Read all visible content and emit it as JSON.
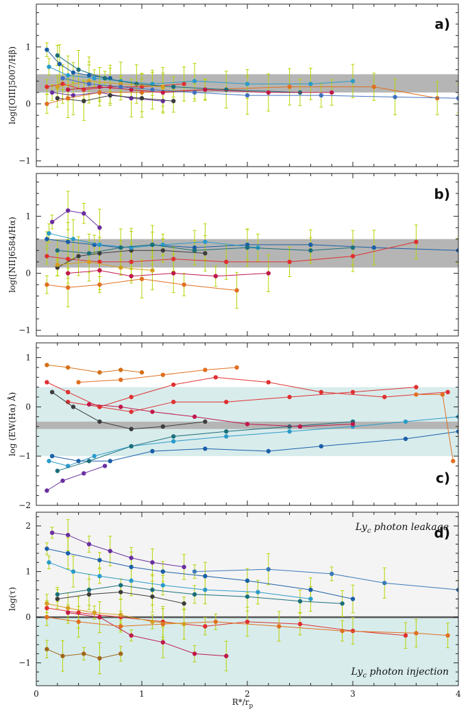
{
  "figure": {
    "xlabel": "R*/r_p",
    "xlabel_main": "R*/r",
    "xlabel_sub": "p"
  },
  "chart_data": [
    {
      "type": "scatter",
      "panel": "a)",
      "ylabel": "log([OIII]5007/Hβ)",
      "xlim": [
        0,
        4
      ],
      "ylim": [
        -1.1,
        1.75
      ],
      "xticks": [
        0,
        1,
        2,
        3,
        4
      ],
      "yticks": [
        -1,
        0,
        1
      ],
      "xtick_labels_shown": false,
      "errorbars": true,
      "bands": [
        {
          "y0": 0.2,
          "y1": 0.52,
          "color": "#b5b5b5"
        }
      ],
      "series": [
        {
          "color": "#1a5fa8",
          "x": [
            0.1,
            0.22,
            0.35,
            0.5,
            0.7
          ],
          "y": [
            0.95,
            0.7,
            0.55,
            0.5,
            0.45
          ]
        },
        {
          "color": "#e03030",
          "x": [
            0.1,
            0.25,
            0.45,
            0.7,
            1.0,
            1.4
          ],
          "y": [
            0.3,
            0.35,
            0.25,
            0.3,
            0.3,
            0.35
          ]
        },
        {
          "color": "#6a2fa0",
          "x": [
            0.15,
            0.35,
            0.6,
            0.9,
            1.2
          ],
          "y": [
            0.2,
            0.15,
            0.2,
            0.1,
            0.05
          ]
        },
        {
          "color": "#2a9bc9",
          "x": [
            0.12,
            0.3,
            0.55,
            0.8,
            1.1,
            1.5,
            2.0,
            2.6,
            3.0
          ],
          "y": [
            0.65,
            0.5,
            0.45,
            0.4,
            0.35,
            0.4,
            0.35,
            0.35,
            0.4
          ]
        },
        {
          "color": "#3c3c3c",
          "x": [
            0.2,
            0.45,
            0.7,
            1.0,
            1.3
          ],
          "y": [
            0.1,
            0.05,
            0.15,
            0.1,
            0.05
          ]
        },
        {
          "color": "#e07020",
          "x": [
            0.1,
            0.3,
            0.6,
            1.0,
            1.6,
            2.4,
            3.2,
            3.8
          ],
          "y": [
            0.0,
            0.1,
            0.2,
            0.2,
            0.25,
            0.3,
            0.3,
            0.1
          ]
        },
        {
          "color": "#1a6f7a",
          "x": [
            0.2,
            0.4,
            0.65,
            0.95,
            1.3,
            1.8,
            2.5
          ],
          "y": [
            0.85,
            0.6,
            0.45,
            0.35,
            0.3,
            0.25,
            0.2
          ]
        },
        {
          "color": "#c0184a",
          "x": [
            0.3,
            0.6,
            0.9,
            1.2,
            1.6,
            2.2,
            2.8
          ],
          "y": [
            0.25,
            0.3,
            0.25,
            0.2,
            0.25,
            0.2,
            0.2
          ]
        },
        {
          "color": "#d4a020",
          "x": [
            0.2,
            0.5,
            0.8,
            1.2
          ],
          "y": [
            0.3,
            0.4,
            0.35,
            0.3
          ]
        },
        {
          "color": "#4070c0",
          "x": [
            0.25,
            0.5,
            0.8,
            1.1,
            1.5,
            2.0,
            2.7,
            3.4,
            4.0
          ],
          "y": [
            0.45,
            0.35,
            0.3,
            0.25,
            0.2,
            0.15,
            0.15,
            0.12,
            0.1
          ]
        }
      ]
    },
    {
      "type": "scatter",
      "panel": "b)",
      "ylabel": "log([NII]6584/Hα)",
      "xlim": [
        0,
        4
      ],
      "ylim": [
        -1.1,
        1.75
      ],
      "xticks": [
        0,
        1,
        2,
        3,
        4
      ],
      "yticks": [
        -1,
        0,
        1
      ],
      "xtick_labels_shown": false,
      "errorbars": true,
      "bands": [
        {
          "y0": 0.1,
          "y1": 0.6,
          "color": "#b5b5b5"
        }
      ],
      "series": [
        {
          "color": "#6a2fa0",
          "x": [
            0.15,
            0.3,
            0.45,
            0.6
          ],
          "y": [
            0.9,
            1.1,
            1.05,
            0.8
          ]
        },
        {
          "color": "#1a5fa8",
          "x": [
            0.1,
            0.3,
            0.55,
            0.8,
            1.1,
            1.5,
            2.0,
            2.6,
            3.2,
            4.0
          ],
          "y": [
            0.6,
            0.55,
            0.5,
            0.45,
            0.5,
            0.45,
            0.5,
            0.5,
            0.45,
            0.4
          ]
        },
        {
          "color": "#e03030",
          "x": [
            0.1,
            0.3,
            0.6,
            0.9,
            1.3,
            1.8,
            2.4,
            3.0,
            3.6
          ],
          "y": [
            0.3,
            0.25,
            0.2,
            0.2,
            0.25,
            0.2,
            0.2,
            0.3,
            0.55
          ]
        },
        {
          "color": "#3c3c3c",
          "x": [
            0.2,
            0.4,
            0.6,
            0.9,
            1.2,
            1.6
          ],
          "y": [
            0.1,
            0.3,
            0.35,
            0.4,
            0.4,
            0.35
          ]
        },
        {
          "color": "#e07020",
          "x": [
            0.1,
            0.3,
            0.6,
            1.0,
            1.4,
            1.9
          ],
          "y": [
            -0.2,
            -0.25,
            -0.2,
            -0.1,
            -0.2,
            -0.3
          ]
        },
        {
          "color": "#2a9bc9",
          "x": [
            0.12,
            0.35,
            0.6,
            0.9,
            1.2,
            1.6,
            2.1
          ],
          "y": [
            0.7,
            0.6,
            0.5,
            0.45,
            0.5,
            0.55,
            0.45
          ]
        },
        {
          "color": "#c0184a",
          "x": [
            0.3,
            0.6,
            0.9,
            1.3,
            1.7,
            2.2
          ],
          "y": [
            0.0,
            0.05,
            -0.05,
            0.0,
            -0.05,
            0.0
          ]
        },
        {
          "color": "#1a6f7a",
          "x": [
            0.2,
            0.5,
            0.8,
            1.1,
            1.5,
            2.0,
            2.6,
            3.0
          ],
          "y": [
            0.4,
            0.35,
            0.45,
            0.5,
            0.4,
            0.45,
            0.4,
            0.45
          ]
        },
        {
          "color": "#d4a020",
          "x": [
            0.2,
            0.5,
            0.8,
            1.1
          ],
          "y": [
            0.15,
            0.2,
            0.1,
            0.05
          ]
        }
      ]
    },
    {
      "type": "line",
      "panel": "c)",
      "ylabel": "log (EW(Hα) Å)",
      "xlim": [
        0,
        4
      ],
      "ylim": [
        -2,
        1.3
      ],
      "xticks": [
        0,
        1,
        2,
        3,
        4
      ],
      "yticks": [
        -2,
        -1,
        0,
        1
      ],
      "xtick_labels_shown": false,
      "errorbars": false,
      "bands": [
        {
          "y0": -1.0,
          "y1": 0.4,
          "color": "#d8ecec"
        },
        {
          "y0": -0.45,
          "y1": -0.3,
          "color": "#b5b5b5"
        }
      ],
      "series": [
        {
          "color": "#d47018",
          "x": [
            0.1,
            0.3,
            0.6,
            0.8,
            1.0
          ],
          "y": [
            0.85,
            0.8,
            0.7,
            0.75,
            0.7
          ]
        },
        {
          "color": "#e07020",
          "x": [
            0.4,
            0.8,
            1.2,
            1.6,
            1.9
          ],
          "y": [
            0.5,
            0.55,
            0.65,
            0.75,
            0.8
          ]
        },
        {
          "color": "#e03030",
          "x": [
            0.1,
            0.3,
            0.6,
            0.9,
            1.3,
            1.8,
            2.4,
            3.0,
            3.6
          ],
          "y": [
            0.5,
            0.3,
            0.0,
            -0.1,
            0.1,
            0.1,
            0.2,
            0.3,
            0.4
          ]
        },
        {
          "color": "#e03030",
          "x": [
            0.3,
            0.6,
            0.9,
            1.3,
            1.7,
            2.2,
            2.7,
            3.3,
            3.9
          ],
          "y": [
            0.1,
            0.0,
            0.2,
            0.45,
            0.6,
            0.5,
            0.3,
            0.2,
            0.3
          ]
        },
        {
          "color": "#3c3c3c",
          "x": [
            0.15,
            0.35,
            0.6,
            0.9,
            1.2,
            1.6
          ],
          "y": [
            0.3,
            0.0,
            -0.3,
            -0.45,
            -0.4,
            -0.3
          ]
        },
        {
          "color": "#2a9bc9",
          "x": [
            0.12,
            0.3,
            0.55,
            0.9,
            1.3,
            1.8,
            2.4,
            3.0,
            3.5,
            4.0
          ],
          "y": [
            -1.1,
            -1.2,
            -1.0,
            -0.8,
            -0.7,
            -0.6,
            -0.5,
            -0.4,
            -0.3,
            -0.2
          ]
        },
        {
          "color": "#1a5fa8",
          "x": [
            0.15,
            0.4,
            0.7,
            1.1,
            1.6,
            2.2,
            2.7,
            3.5,
            4.0
          ],
          "y": [
            -1.0,
            -1.1,
            -1.1,
            -0.9,
            -0.85,
            -0.9,
            -0.8,
            -0.65,
            -0.5
          ]
        },
        {
          "color": "#6a2fa0",
          "x": [
            0.1,
            0.25,
            0.45,
            0.65
          ],
          "y": [
            -1.7,
            -1.5,
            -1.35,
            -1.2
          ]
        },
        {
          "color": "#1a6f7a",
          "x": [
            0.2,
            0.5,
            0.9,
            1.3,
            1.8,
            2.4,
            3.0
          ],
          "y": [
            -1.3,
            -1.1,
            -0.8,
            -0.6,
            -0.5,
            -0.4,
            -0.3
          ]
        },
        {
          "color": "#e07020",
          "x": [
            3.6,
            3.85,
            3.95
          ],
          "y": [
            0.25,
            0.25,
            -1.1
          ]
        },
        {
          "color": "#c0184a",
          "x": [
            0.5,
            0.8,
            1.1,
            1.5,
            2.0,
            2.5,
            3.0
          ],
          "y": [
            0.05,
            0.0,
            -0.1,
            -0.2,
            -0.35,
            -0.4,
            -0.35
          ]
        }
      ]
    },
    {
      "type": "scatter",
      "panel": "d)",
      "ylabel": "log(τ)",
      "xlim": [
        0,
        4
      ],
      "ylim": [
        -1.5,
        2.3
      ],
      "xticks": [
        0,
        1,
        2,
        3,
        4
      ],
      "yticks": [
        -1,
        0,
        1,
        2
      ],
      "xtick_labels": [
        "0",
        "1",
        "2",
        "3",
        "4"
      ],
      "xtick_labels_shown": true,
      "errorbars": true,
      "bands": [
        {
          "y0": 0,
          "y1": 2.3,
          "color": "#f4f4f4"
        },
        {
          "y0": -1.5,
          "y1": 0,
          "color": "#d8ecec"
        }
      ],
      "hline": {
        "y": 0,
        "color": "#555555"
      },
      "annotations": [
        {
          "text": "Ly_c photon leakage",
          "main": "Ly",
          "sub": "c",
          "rest": " photon leakage",
          "position": "top-right"
        },
        {
          "text": "Ly_c photon injection",
          "main": "Ly",
          "sub": "c",
          "rest": " photon injection",
          "position": "bottom-right"
        }
      ],
      "series": [
        {
          "color": "#6a2fa0",
          "x": [
            0.15,
            0.3,
            0.5,
            0.7,
            0.9,
            1.1,
            1.4
          ],
          "y": [
            1.85,
            1.8,
            1.6,
            1.45,
            1.3,
            1.2,
            1.1
          ]
        },
        {
          "color": "#1a5fa8",
          "x": [
            0.1,
            0.3,
            0.6,
            0.9,
            1.2,
            1.6,
            2.0,
            2.6,
            3.0
          ],
          "y": [
            1.5,
            1.4,
            1.25,
            1.1,
            1.0,
            0.9,
            0.8,
            0.6,
            0.4
          ]
        },
        {
          "color": "#2a9bc9",
          "x": [
            0.12,
            0.35,
            0.6,
            0.9,
            1.2,
            1.6,
            2.1,
            2.6
          ],
          "y": [
            1.2,
            1.0,
            0.9,
            0.8,
            0.7,
            0.6,
            0.55,
            0.4
          ]
        },
        {
          "color": "#3a7ab8",
          "x": [
            1.5,
            2.2,
            2.8,
            3.3,
            4.0
          ],
          "y": [
            1.0,
            1.05,
            0.95,
            0.75,
            0.6
          ]
        },
        {
          "color": "#1a6f7a",
          "x": [
            0.2,
            0.5,
            0.8,
            1.1,
            1.5,
            2.0,
            2.5,
            2.9
          ],
          "y": [
            0.5,
            0.6,
            0.7,
            0.6,
            0.5,
            0.45,
            0.35,
            0.3
          ]
        },
        {
          "color": "#e03030",
          "x": [
            0.1,
            0.4,
            0.8,
            1.2,
            1.6,
            2.0,
            2.5,
            3.0,
            3.5
          ],
          "y": [
            0.2,
            0.1,
            0.0,
            -0.1,
            -0.2,
            -0.1,
            -0.15,
            -0.3,
            -0.4
          ]
        },
        {
          "color": "#c0184a",
          "x": [
            0.3,
            0.6,
            0.9,
            1.2,
            1.5,
            1.8
          ],
          "y": [
            0.1,
            0.0,
            -0.4,
            -0.55,
            -0.8,
            -0.85
          ]
        },
        {
          "color": "#e07020",
          "x": [
            0.1,
            0.4,
            0.8,
            1.2,
            1.7,
            2.3,
            2.9,
            3.6,
            3.9
          ],
          "y": [
            0.0,
            -0.1,
            -0.2,
            -0.15,
            -0.1,
            -0.2,
            -0.3,
            -0.35,
            -0.4
          ]
        },
        {
          "color": "#a0661a",
          "x": [
            0.1,
            0.25,
            0.45,
            0.6,
            0.8
          ],
          "y": [
            -0.7,
            -0.85,
            -0.8,
            -0.9,
            -0.8
          ]
        },
        {
          "color": "#d4a020",
          "x": [
            0.1,
            0.3,
            0.55,
            0.8,
            1.1,
            1.4
          ],
          "y": [
            0.3,
            0.2,
            0.1,
            0.05,
            -0.1,
            -0.15
          ]
        },
        {
          "color": "#3c3c3c",
          "x": [
            0.2,
            0.5,
            0.8,
            1.1,
            1.4
          ],
          "y": [
            0.4,
            0.5,
            0.55,
            0.45,
            0.3
          ]
        }
      ]
    }
  ]
}
